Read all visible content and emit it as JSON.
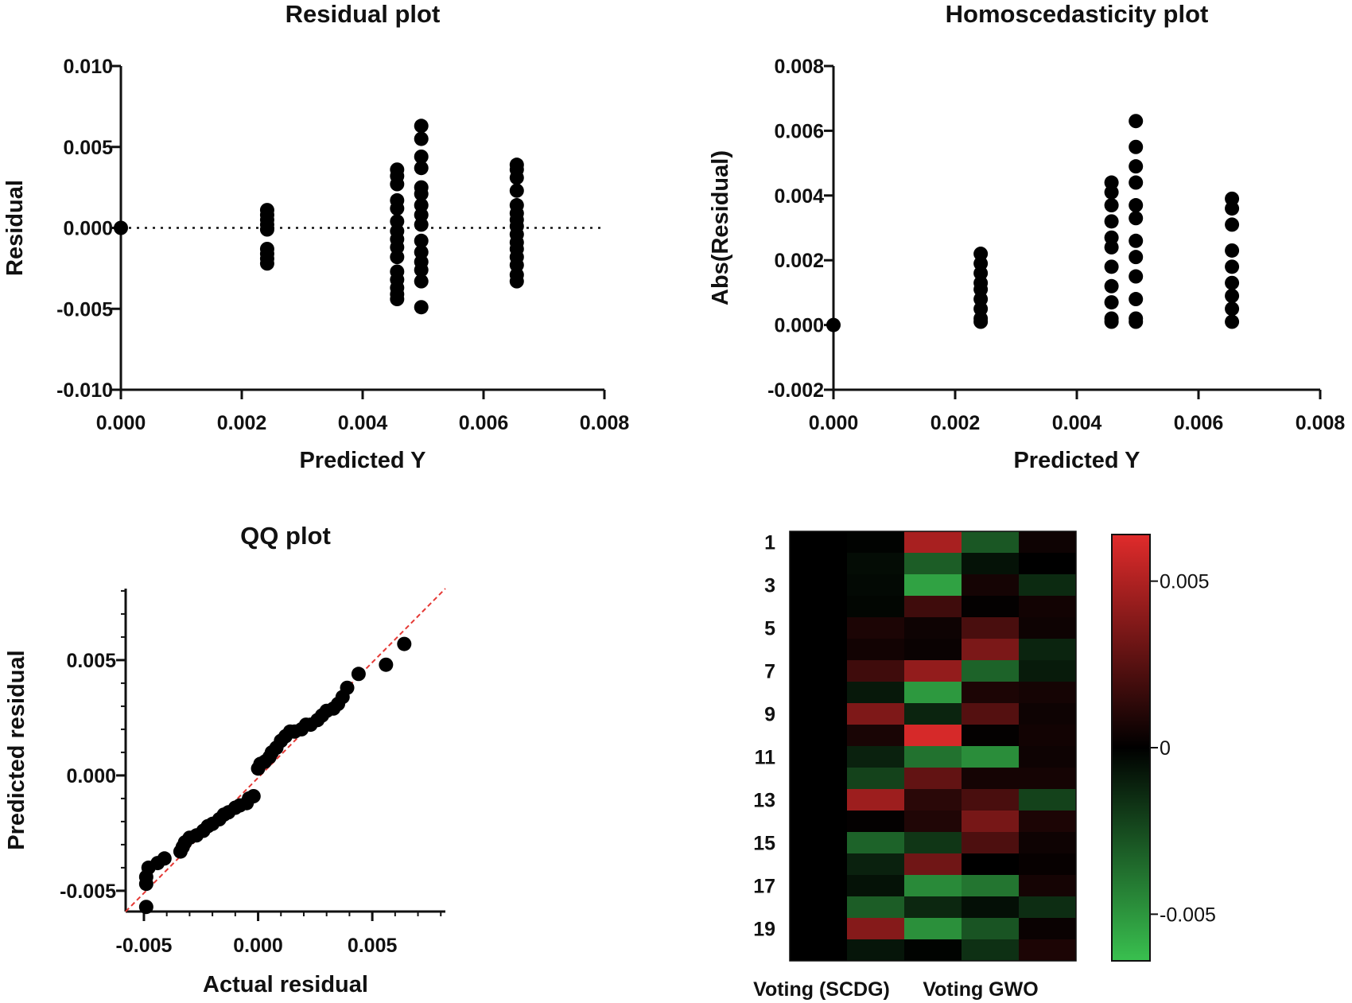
{
  "chart_data": [
    {
      "id": "residual",
      "type": "scatter",
      "title": "Residual plot",
      "xlabel": "Predicted Y",
      "ylabel": "Residual",
      "xlim": [
        0,
        0.008
      ],
      "ylim": [
        -0.01,
        0.01
      ],
      "xticks": [
        "0.000",
        "0.002",
        "0.004",
        "0.006",
        "0.008"
      ],
      "yticks": [
        "-0.010",
        "-0.005",
        "0.000",
        "0.005",
        "0.010"
      ],
      "reference_line": {
        "y": 0,
        "style": "dotted"
      },
      "series": [
        {
          "name": "Residual",
          "points": [
            [
              0,
              0
            ],
            [
              0.00242,
              0.0011
            ],
            [
              0.00242,
              0.0008
            ],
            [
              0.00242,
              0.0005
            ],
            [
              0.00242,
              0.0002
            ],
            [
              0.00242,
              -0.0001
            ],
            [
              0.00242,
              -0.0013
            ],
            [
              0.00242,
              -0.0016
            ],
            [
              0.00242,
              -0.0019
            ],
            [
              0.00242,
              -0.0022
            ],
            [
              0.00457,
              0.0036
            ],
            [
              0.00457,
              0.0032
            ],
            [
              0.00457,
              0.0027
            ],
            [
              0.00457,
              0.0017
            ],
            [
              0.00457,
              0.0012
            ],
            [
              0.00457,
              0.0004
            ],
            [
              0.00457,
              -0.0002
            ],
            [
              0.00457,
              -0.0007
            ],
            [
              0.00457,
              -0.0012
            ],
            [
              0.00457,
              -0.0018
            ],
            [
              0.00457,
              -0.0027
            ],
            [
              0.00457,
              -0.0032
            ],
            [
              0.00457,
              -0.0037
            ],
            [
              0.00457,
              -0.0041
            ],
            [
              0.00457,
              -0.0044
            ],
            [
              0.00497,
              0.0063
            ],
            [
              0.00497,
              0.0055
            ],
            [
              0.00497,
              0.0044
            ],
            [
              0.00497,
              0.0037
            ],
            [
              0.00497,
              0.0025
            ],
            [
              0.00497,
              0.0021
            ],
            [
              0.00497,
              0.0014
            ],
            [
              0.00497,
              0.0008
            ],
            [
              0.00497,
              0.0002
            ],
            [
              0.00497,
              -0.0008
            ],
            [
              0.00497,
              -0.0015
            ],
            [
              0.00497,
              -0.0021
            ],
            [
              0.00497,
              -0.0026
            ],
            [
              0.00497,
              -0.0033
            ],
            [
              0.00497,
              -0.0049
            ],
            [
              0.00655,
              0.0039
            ],
            [
              0.00655,
              0.0036
            ],
            [
              0.00655,
              0.0031
            ],
            [
              0.00655,
              0.0023
            ],
            [
              0.00655,
              0.0014
            ],
            [
              0.00655,
              0.0009
            ],
            [
              0.00655,
              0.0005
            ],
            [
              0.00655,
              0.0001
            ],
            [
              0.00655,
              -0.0004
            ],
            [
              0.00655,
              -0.0009
            ],
            [
              0.00655,
              -0.0013
            ],
            [
              0.00655,
              -0.0018
            ],
            [
              0.00655,
              -0.0023
            ],
            [
              0.00655,
              -0.0029
            ],
            [
              0.00655,
              -0.0033
            ]
          ]
        }
      ]
    },
    {
      "id": "homoscedasticity",
      "type": "scatter",
      "title": "Homoscedasticity plot",
      "xlabel": "Predicted Y",
      "ylabel": "Abs(Residual)",
      "xlim": [
        0,
        0.008
      ],
      "ylim": [
        -0.002,
        0.008
      ],
      "xticks": [
        "0.000",
        "0.002",
        "0.004",
        "0.006",
        "0.008"
      ],
      "yticks": [
        "-0.002",
        "0.000",
        "0.002",
        "0.004",
        "0.006",
        "0.008"
      ],
      "series": [
        {
          "name": "Abs(Residual)",
          "points": [
            [
              0,
              0
            ],
            [
              0.00242,
              0.0022
            ],
            [
              0.00242,
              0.0019
            ],
            [
              0.00242,
              0.0016
            ],
            [
              0.00242,
              0.0013
            ],
            [
              0.00242,
              0.0011
            ],
            [
              0.00242,
              0.0008
            ],
            [
              0.00242,
              0.0005
            ],
            [
              0.00242,
              0.0002
            ],
            [
              0.00242,
              0.0001
            ],
            [
              0.00457,
              0.0044
            ],
            [
              0.00457,
              0.0041
            ],
            [
              0.00457,
              0.0037
            ],
            [
              0.00457,
              0.0032
            ],
            [
              0.00457,
              0.0027
            ],
            [
              0.00457,
              0.0024
            ],
            [
              0.00457,
              0.0018
            ],
            [
              0.00457,
              0.0012
            ],
            [
              0.00457,
              0.0007
            ],
            [
              0.00457,
              0.0002
            ],
            [
              0.00457,
              0.0001
            ],
            [
              0.00497,
              0.0063
            ],
            [
              0.00497,
              0.0055
            ],
            [
              0.00497,
              0.0049
            ],
            [
              0.00497,
              0.0044
            ],
            [
              0.00497,
              0.0037
            ],
            [
              0.00497,
              0.0033
            ],
            [
              0.00497,
              0.0026
            ],
            [
              0.00497,
              0.0021
            ],
            [
              0.00497,
              0.0015
            ],
            [
              0.00497,
              0.0008
            ],
            [
              0.00497,
              0.0002
            ],
            [
              0.00497,
              0.0001
            ],
            [
              0.00655,
              0.0039
            ],
            [
              0.00655,
              0.0036
            ],
            [
              0.00655,
              0.0031
            ],
            [
              0.00655,
              0.0023
            ],
            [
              0.00655,
              0.0018
            ],
            [
              0.00655,
              0.0013
            ],
            [
              0.00655,
              0.0009
            ],
            [
              0.00655,
              0.0005
            ],
            [
              0.00655,
              0.0001
            ]
          ]
        }
      ]
    },
    {
      "id": "qq",
      "type": "scatter",
      "title": "QQ plot",
      "xlabel": "Actual residual",
      "ylabel": "Predicted residual",
      "xlim": [
        -0.0058,
        0.0082
      ],
      "ylim": [
        -0.0059,
        0.0081
      ],
      "xticks": [
        "-0.005",
        "0.000",
        "0.005"
      ],
      "yticks": [
        "-0.005",
        "0.000",
        "0.005"
      ],
      "reference_line": {
        "from": [
          -0.0058,
          -0.0059
        ],
        "to": [
          0.0082,
          0.0081
        ],
        "style": "dashed",
        "color": "#e53935"
      },
      "series": [
        {
          "name": "Residuals",
          "points": [
            [
              -0.0049,
              -0.0057
            ],
            [
              -0.0049,
              -0.0047
            ],
            [
              -0.0049,
              -0.0044
            ],
            [
              -0.0048,
              -0.004
            ],
            [
              -0.0044,
              -0.0038
            ],
            [
              -0.0041,
              -0.0036
            ],
            [
              -0.0034,
              -0.0033
            ],
            [
              -0.0033,
              -0.0031
            ],
            [
              -0.0032,
              -0.0029
            ],
            [
              -0.003,
              -0.0027
            ],
            [
              -0.0027,
              -0.0026
            ],
            [
              -0.0024,
              -0.0024
            ],
            [
              -0.0022,
              -0.0022
            ],
            [
              -0.002,
              -0.0021
            ],
            [
              -0.0017,
              -0.0019
            ],
            [
              -0.0015,
              -0.0017
            ],
            [
              -0.0013,
              -0.0016
            ],
            [
              -0.001,
              -0.0014
            ],
            [
              -0.0008,
              -0.0013
            ],
            [
              -0.0005,
              -0.0012
            ],
            [
              -0.0004,
              -0.001
            ],
            [
              -0.0002,
              -0.0009
            ],
            [
              0.0,
              0.0003
            ],
            [
              0.0001,
              0.0005
            ],
            [
              0.0003,
              0.0006
            ],
            [
              0.0005,
              0.0008
            ],
            [
              0.0006,
              0.001
            ],
            [
              0.0008,
              0.0012
            ],
            [
              0.001,
              0.0015
            ],
            [
              0.0012,
              0.0017
            ],
            [
              0.0014,
              0.0019
            ],
            [
              0.0016,
              0.0019
            ],
            [
              0.0019,
              0.002
            ],
            [
              0.0021,
              0.0022
            ],
            [
              0.0023,
              0.0022
            ],
            [
              0.0026,
              0.0024
            ],
            [
              0.0028,
              0.0026
            ],
            [
              0.003,
              0.0028
            ],
            [
              0.0033,
              0.0029
            ],
            [
              0.0035,
              0.0031
            ],
            [
              0.0037,
              0.0034
            ],
            [
              0.0039,
              0.0038
            ],
            [
              0.0044,
              0.0044
            ],
            [
              0.0056,
              0.0048
            ],
            [
              0.0064,
              0.0057
            ]
          ]
        }
      ]
    },
    {
      "id": "heatmap",
      "type": "heatmap",
      "title": "",
      "row_labels": [
        "1",
        "",
        "3",
        "",
        "5",
        "",
        "7",
        "",
        "9",
        "",
        "11",
        "",
        "13",
        "",
        "15",
        "",
        "17",
        "",
        "19",
        ""
      ],
      "col_labels": [
        "Voting (SCDG)",
        "",
        "",
        "Voting GWO",
        ""
      ],
      "xtick_labels": [
        "Voting (SCDG)",
        "Voting GWO"
      ],
      "colorbar": {
        "min": -0.0064,
        "max": 0.0064,
        "ticks": [
          "0.005",
          "0",
          "-0.005"
        ],
        "tick_values": [
          0.005,
          0,
          -0.005
        ],
        "colors": [
          "#39c04f",
          "#000000",
          "#e02b2b"
        ]
      },
      "values": [
        [
          0,
          -0.0001,
          0.0048,
          -0.0029,
          0.0004
        ],
        [
          0,
          -0.0004,
          -0.0031,
          -0.0006,
          0
        ],
        [
          0,
          -0.0003,
          -0.0054,
          0.0006,
          -0.0014
        ],
        [
          0,
          -0.0002,
          0.0018,
          0.0001,
          0.0005
        ],
        [
          0,
          0.0008,
          0.0004,
          0.0021,
          0.0004
        ],
        [
          0,
          0.0005,
          0.0003,
          0.0035,
          -0.0012
        ],
        [
          0,
          0.0018,
          0.0042,
          -0.0033,
          -0.0009
        ],
        [
          0,
          -0.0008,
          -0.0051,
          0.0008,
          0.0006
        ],
        [
          0,
          0.0036,
          -0.0012,
          0.0024,
          0.0004
        ],
        [
          0,
          0.0007,
          0.0061,
          0.0001,
          0.0005
        ],
        [
          0,
          -0.0011,
          -0.0038,
          -0.0047,
          0.0004
        ],
        [
          0,
          -0.0022,
          0.0028,
          0.0006,
          0.0006
        ],
        [
          0,
          0.0045,
          0.0012,
          0.0021,
          -0.0022
        ],
        [
          0,
          0.0001,
          0.0009,
          0.0034,
          0.0008
        ],
        [
          0,
          -0.0033,
          -0.0018,
          0.0022,
          0.0004
        ],
        [
          0,
          -0.0011,
          0.0032,
          0,
          0.0002
        ],
        [
          0,
          -0.0006,
          -0.0046,
          -0.0039,
          0.0006
        ],
        [
          0,
          -0.0031,
          -0.0013,
          -0.0005,
          -0.0015
        ],
        [
          0,
          0.0038,
          -0.0048,
          -0.0028,
          0.0003
        ],
        [
          0,
          -0.0007,
          -0.0001,
          -0.0016,
          0.0008
        ]
      ]
    }
  ]
}
